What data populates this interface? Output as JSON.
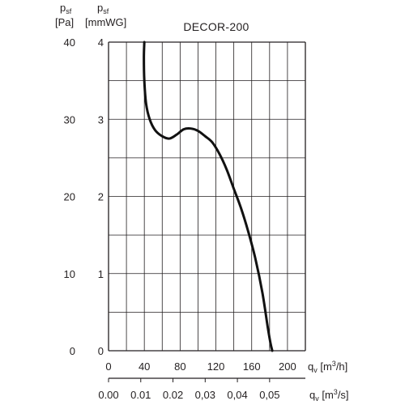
{
  "chart_data": {
    "type": "line",
    "title": "DECOR-200",
    "left_axis": {
      "symbol": "p",
      "subscript": "sf",
      "unit": "[Pa]",
      "range": [
        0,
        40
      ],
      "ticks": [
        "0",
        "10",
        "20",
        "30",
        "40"
      ]
    },
    "inner_axis": {
      "symbol": "p",
      "subscript": "sf",
      "unit": "[mmWG]",
      "range": [
        0,
        4
      ],
      "ticks": [
        "0",
        "1",
        "2",
        "3",
        "4"
      ]
    },
    "x_axis": {
      "symbol": "q",
      "subscript": "v",
      "unit_pre": "[m",
      "unit_sup": "3",
      "unit_post": "/h]",
      "range": [
        0,
        220
      ],
      "ticks": [
        "0",
        "40",
        "80",
        "120",
        "160",
        "200"
      ]
    },
    "x_axis_secondary": {
      "symbol": "q",
      "subscript": "v",
      "unit_pre": "[m",
      "unit_sup": "3",
      "unit_post": "/s]",
      "range": [
        0,
        0.0611
      ],
      "ticks": [
        "0.00",
        "0.01",
        "0.02",
        "0,03",
        "0,04",
        "0,05"
      ],
      "tick_values": [
        0,
        0.01,
        0.02,
        0.03,
        0.04,
        0.05
      ]
    },
    "grid": true,
    "series": [
      {
        "color": "#111111",
        "x": [
          40,
          39.5,
          40,
          42,
          46,
          52,
          60,
          68,
          76,
          84,
          92,
          100,
          108,
          116,
          124,
          132,
          140,
          148,
          156,
          164,
          172,
          178,
          181,
          183
        ],
        "y": [
          40,
          38,
          35,
          32,
          30,
          28.6,
          27.8,
          27.5,
          28,
          28.7,
          28.8,
          28.5,
          27.8,
          27,
          25.5,
          23.5,
          21,
          18.5,
          15.5,
          12,
          7.5,
          3,
          1,
          0
        ]
      }
    ]
  }
}
